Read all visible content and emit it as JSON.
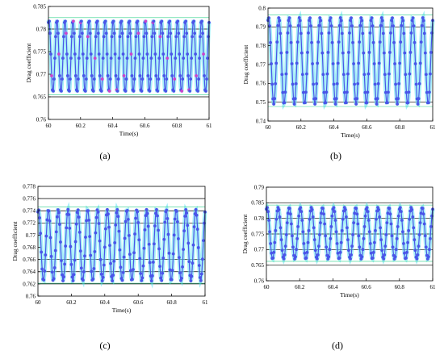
{
  "colors": {
    "marker": "#4a55e8",
    "marker_alt": "#cc44cc",
    "band": "#5fe0f0",
    "hline": "#2bd18a",
    "axis": "#000000"
  },
  "chart_data": [
    {
      "label": "(a)",
      "type": "scatter",
      "xlabel": "Time(s)",
      "ylabel": "Drag  coefficient",
      "xlim": [
        60,
        61
      ],
      "ylim": [
        0.76,
        0.785
      ],
      "xticks": [
        "60",
        "60.2",
        "60.4",
        "60.6",
        "60.8",
        "61"
      ],
      "yticks": [
        "0.76",
        "0.765",
        "0.77",
        "0.775",
        "0.78",
        "0.785"
      ],
      "grid_y": [
        0.765,
        0.78
      ],
      "series": [
        {
          "cycles": 20,
          "min": 0.766,
          "max": 0.782
        }
      ]
    },
    {
      "label": "(b)",
      "type": "scatter",
      "xlabel": "Time(s)",
      "ylabel": "Drag  coefficient",
      "xlim": [
        60,
        61
      ],
      "ylim": [
        0.74,
        0.8
      ],
      "xticks": [
        "60",
        "60.2",
        "60.4",
        "60.6",
        "60.8",
        "61"
      ],
      "yticks": [
        "0.74",
        "0.75",
        "0.76",
        "0.77",
        "0.78",
        "0.79",
        "0.8"
      ],
      "grid_y": [
        0.75,
        0.79
      ],
      "series": [
        {
          "cycles": 16,
          "min": 0.749,
          "max": 0.795
        }
      ]
    },
    {
      "label": "(c)",
      "type": "scatter",
      "xlabel": "Time(s)",
      "ylabel": "Drag  coefficient",
      "xlim": [
        60,
        61
      ],
      "ylim": [
        0.76,
        0.778
      ],
      "xticks": [
        "60",
        "60.2",
        "60.4",
        "60.6",
        "60.8",
        "61"
      ],
      "yticks": [
        "0.76",
        "0.762",
        "0.764",
        "0.766",
        "0.768",
        "0.77",
        "0.772",
        "0.774",
        "0.776",
        "0.778"
      ],
      "grid_y": [
        0.762,
        0.764,
        0.766,
        0.772,
        0.774,
        0.776
      ],
      "series": [
        {
          "cycles": 17,
          "min": 0.7625,
          "max": 0.7742
        }
      ]
    },
    {
      "label": "(d)",
      "type": "scatter",
      "xlabel": "Time(s)",
      "ylabel": "Drag  coefficient",
      "xlim": [
        60,
        61
      ],
      "ylim": [
        0.76,
        0.79
      ],
      "xticks": [
        "60",
        "60.2",
        "60.4",
        "60.6",
        "60.8",
        "61"
      ],
      "yticks": [
        "0.76",
        "0.765",
        "0.77",
        "0.775",
        "0.78",
        "0.785",
        "0.79"
      ],
      "grid_y": [
        0.765,
        0.77,
        0.775,
        0.78,
        0.785
      ],
      "series": [
        {
          "cycles": 15,
          "min": 0.767,
          "max": 0.7835
        }
      ]
    }
  ]
}
